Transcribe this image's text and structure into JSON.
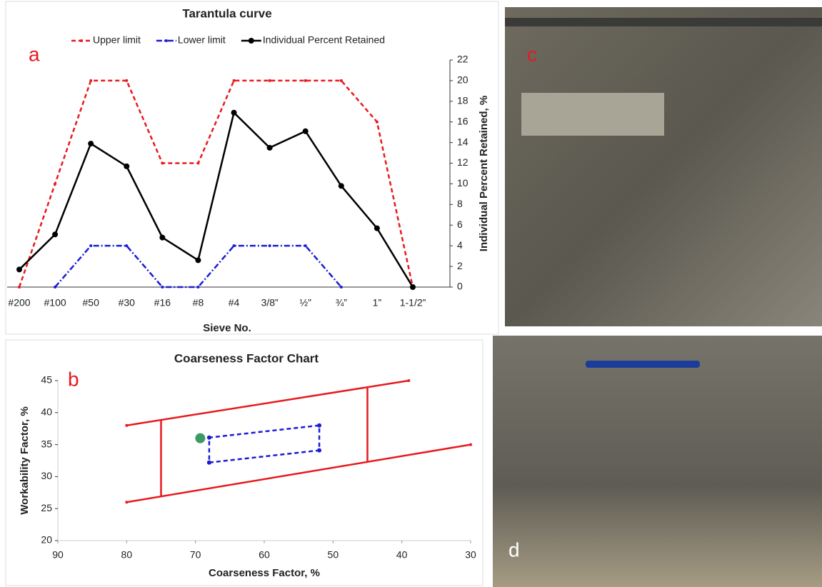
{
  "chart_data": [
    {
      "type": "line",
      "panel_label": "a",
      "title": "Tarantula curve",
      "x_label": "Sieve No.",
      "y_label": "Individual Percent Retained, %",
      "categories": [
        "#200",
        "#100",
        "#50",
        "#30",
        "#16",
        "#8",
        "#4",
        "3/8”",
        "½”",
        "¾”",
        "1”",
        "1-1/2”"
      ],
      "ylim": [
        0,
        22
      ],
      "yticks": [
        0,
        2,
        4,
        6,
        8,
        10,
        12,
        14,
        16,
        18,
        20,
        22
      ],
      "y_axis_side": "right",
      "grid": false,
      "legend": "top",
      "series": [
        {
          "name": "Upper limit",
          "color": "#e8191e",
          "line_style": "dashed",
          "marker_size": 2,
          "values": [
            0,
            10,
            20,
            20,
            12,
            12,
            20,
            20,
            20,
            20,
            16,
            0
          ]
        },
        {
          "name": "Lower limit",
          "color": "#1c1cd4",
          "line_style": "dashdot",
          "marker_size": 2,
          "values": [
            null,
            0,
            4,
            4,
            0,
            0,
            4,
            4,
            4,
            0,
            null,
            null
          ]
        },
        {
          "name": "Individual Percent Retained",
          "color": "#000000",
          "line_style": "solid",
          "marker_size": 4,
          "values": [
            1.7,
            5.1,
            13.9,
            11.7,
            4.8,
            2.6,
            16.9,
            13.5,
            15.1,
            9.8,
            5.7,
            0
          ]
        }
      ]
    },
    {
      "type": "line",
      "panel_label": "b",
      "title": "Coarseness Factor Chart",
      "x_label": "Coarseness Factor, %",
      "y_label": "Workability Factor, %",
      "xlim": [
        90,
        30
      ],
      "xticks": [
        90,
        80,
        70,
        60,
        50,
        40,
        30
      ],
      "ylim": [
        20,
        45
      ],
      "yticks": [
        20,
        25,
        30,
        35,
        40,
        45
      ],
      "y_axis_side": "left",
      "grid": false,
      "series": [
        {
          "color": "#e8191e",
          "line_style": "solid",
          "marker_size": 2,
          "x": [
            80,
            39
          ],
          "values": [
            38,
            45
          ]
        },
        {
          "color": "#e8191e",
          "line_style": "solid",
          "marker_size": 2,
          "x": [
            80,
            30
          ],
          "values": [
            26,
            35
          ]
        },
        {
          "color": "#e8191e",
          "line_style": "solid",
          "marker_size": 1,
          "x": [
            75,
            75
          ],
          "values": [
            26.9,
            38.85
          ]
        },
        {
          "color": "#e8191e",
          "line_style": "solid",
          "marker_size": 1,
          "x": [
            45,
            45
          ],
          "values": [
            32.3,
            44
          ]
        },
        {
          "color": "#1c1cd4",
          "line_style": "dashed",
          "marker_size": 3,
          "x": [
            68,
            52,
            52,
            68,
            68
          ],
          "values": [
            32.2,
            34.1,
            38,
            36.1,
            32.2
          ]
        },
        {
          "color": "#3c9a64",
          "line_style": "none",
          "marker_size": 7,
          "x": [
            69.3
          ],
          "values": [
            36
          ]
        }
      ]
    }
  ],
  "photos": [
    {
      "label": "c"
    },
    {
      "label": "d"
    }
  ]
}
